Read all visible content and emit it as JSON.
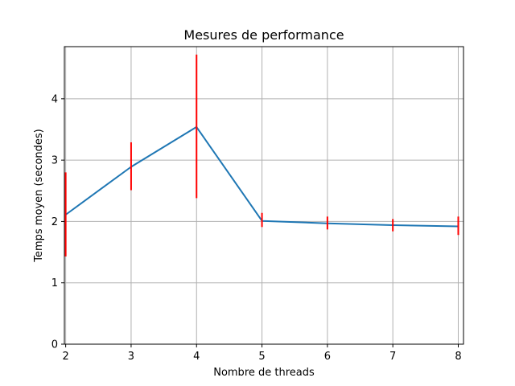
{
  "chart_data": {
    "type": "line",
    "title": "Mesures de performance",
    "xlabel": "Nombre de threads",
    "ylabel": "Temps moyen (secondes)",
    "x": [
      2,
      3,
      4,
      5,
      6,
      7,
      8
    ],
    "xlim": [
      1.98,
      8.08
    ],
    "ylim": [
      0,
      4.85
    ],
    "xticks": [
      2,
      3,
      4,
      5,
      6,
      7,
      8
    ],
    "yticks": [
      0,
      1,
      2,
      3,
      4
    ],
    "grid": true,
    "series": [
      {
        "name": "Temps moyen",
        "values": [
          2.11,
          2.89,
          3.54,
          2.01,
          1.97,
          1.94,
          1.92
        ],
        "error_low": [
          1.43,
          2.51,
          2.38,
          1.91,
          1.87,
          1.84,
          1.78
        ],
        "error_high": [
          2.8,
          3.29,
          4.72,
          2.14,
          2.08,
          2.04,
          2.08
        ],
        "color": "#1f77b4",
        "error_color": "#ff0000"
      }
    ]
  }
}
